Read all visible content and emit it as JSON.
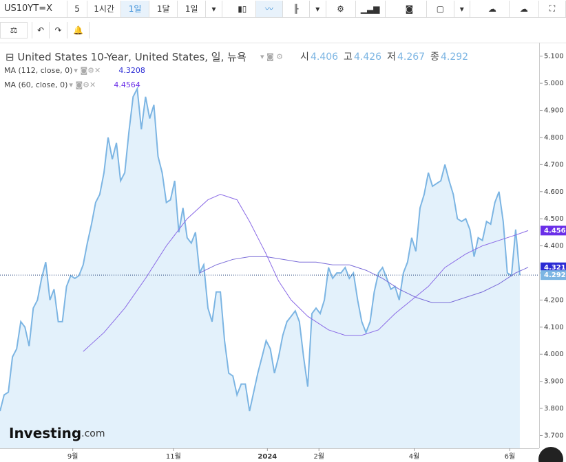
{
  "toolbar": {
    "symbol": "US10YT=X",
    "intervals": [
      "5",
      "1시간",
      "1일",
      "1달",
      "1일"
    ]
  },
  "chart_data": {
    "type": "line",
    "title": "United States 10-Year, United States, 일, 뉴욕",
    "ohlc": [
      {
        "label": "시",
        "value": "4.406"
      },
      {
        "label": "고",
        "value": "4.426"
      },
      {
        "label": "저",
        "value": "4.267"
      },
      {
        "label": "종",
        "value": "4.292"
      }
    ],
    "watermark": [
      "Investing",
      ".com"
    ],
    "xlim": [
      0,
      127
    ],
    "xticks": [
      {
        "value": 17.5,
        "label": "9월"
      },
      {
        "value": 41.7,
        "label": "11월"
      },
      {
        "value": 64.3,
        "label": "2024"
      },
      {
        "value": 76.7,
        "label": "2월"
      },
      {
        "value": 99.6,
        "label": "4월"
      },
      {
        "value": 122.6,
        "label": "6월"
      }
    ],
    "ylim": [
      3.653,
      5.15
    ],
    "yticks": [
      {
        "value": 3.7,
        "label": "3.700"
      },
      {
        "value": 3.8,
        "label": "3.800"
      },
      {
        "value": 3.9,
        "label": "3.900"
      },
      {
        "value": 4.0,
        "label": "4.000"
      },
      {
        "value": 4.1,
        "label": "4.100"
      },
      {
        "value": 4.2,
        "label": "4.200"
      },
      {
        "value": 4.3,
        "label": "4.300"
      },
      {
        "value": 4.4,
        "label": "4.400"
      },
      {
        "value": 4.5,
        "label": "4.500"
      },
      {
        "value": 4.6,
        "label": "4.600"
      },
      {
        "value": 4.7,
        "label": "4.700"
      },
      {
        "value": 4.8,
        "label": "4.800"
      },
      {
        "value": 4.9,
        "label": "4.900"
      },
      {
        "value": 5.0,
        "label": "5.000"
      },
      {
        "value": 5.1,
        "label": "5.100"
      }
    ],
    "series": [
      {
        "name": "US10YT=X",
        "color": "#7cb5e3",
        "fill": "#e3f1fb",
        "values": [
          3.79,
          3.85,
          3.86,
          3.99,
          4.02,
          4.12,
          4.1,
          4.03,
          4.17,
          4.2,
          4.28,
          4.34,
          4.2,
          4.24,
          4.12,
          4.12,
          4.25,
          4.29,
          4.28,
          4.29,
          4.33,
          4.41,
          4.48,
          4.56,
          4.59,
          4.67,
          4.8,
          4.72,
          4.78,
          4.64,
          4.67,
          4.82,
          4.95,
          4.98,
          4.83,
          4.95,
          4.87,
          4.92,
          4.73,
          4.67,
          4.56,
          4.57,
          4.64,
          4.45,
          4.54,
          4.43,
          4.41,
          4.45,
          4.3,
          4.33,
          4.17,
          4.12,
          4.23,
          4.23,
          4.05,
          3.93,
          3.92,
          3.85,
          3.89,
          3.89,
          3.79,
          3.86,
          3.93,
          3.99,
          4.05,
          4.02,
          3.93,
          3.99,
          4.07,
          4.12,
          4.14,
          4.16,
          4.12,
          3.99,
          3.88,
          4.15,
          4.17,
          4.15,
          4.2,
          4.32,
          4.28,
          4.3,
          4.3,
          4.32,
          4.28,
          4.3,
          4.2,
          4.12,
          4.08,
          4.12,
          4.23,
          4.3,
          4.32,
          4.28,
          4.24,
          4.25,
          4.2,
          4.3,
          4.34,
          4.43,
          4.38,
          4.54,
          4.59,
          4.67,
          4.62,
          4.63,
          4.64,
          4.7,
          4.64,
          4.59,
          4.5,
          4.49,
          4.5,
          4.46,
          4.36,
          4.43,
          4.42,
          4.49,
          4.48,
          4.56,
          4.6,
          4.49,
          4.3,
          4.29,
          4.46,
          4.292
        ]
      },
      {
        "name": "MA (112, close, 0)",
        "last_label": "4.3208",
        "color": "#7a6cd8",
        "label_color": "#2b2bd4",
        "x": [
          48,
          52,
          56,
          60,
          64,
          68,
          72,
          76,
          80,
          84,
          88,
          92,
          96,
          100,
          104,
          108,
          112,
          116,
          120,
          124,
          127
        ],
        "values": [
          4.3,
          4.33,
          4.35,
          4.36,
          4.36,
          4.35,
          4.34,
          4.34,
          4.33,
          4.33,
          4.31,
          4.28,
          4.24,
          4.21,
          4.19,
          4.19,
          4.21,
          4.23,
          4.26,
          4.3,
          4.3208
        ]
      },
      {
        "name": "MA (60, close, 0)",
        "last_label": "4.4564",
        "color": "#8a6ae6",
        "label_color": "#6a2ee8",
        "x": [
          20,
          25,
          30,
          35,
          40,
          45,
          50,
          53,
          57,
          60,
          64,
          67,
          70,
          74,
          79,
          83,
          87,
          91,
          95,
          99,
          103,
          107,
          112,
          116,
          120,
          124,
          127
        ],
        "values": [
          4.01,
          4.08,
          4.17,
          4.28,
          4.4,
          4.5,
          4.57,
          4.59,
          4.57,
          4.49,
          4.37,
          4.27,
          4.2,
          4.14,
          4.09,
          4.07,
          4.07,
          4.09,
          4.15,
          4.2,
          4.25,
          4.32,
          4.37,
          4.4,
          4.42,
          4.44,
          4.4564
        ]
      }
    ],
    "price_scale_labels": [
      {
        "value": 4.4564,
        "label": "4.456",
        "color": "#6a2ee8"
      },
      {
        "value": 4.3208,
        "label": "4.321",
        "color": "#2b2bd4"
      },
      {
        "value": 4.292,
        "label": "4.292",
        "color": "#7cb5e3"
      }
    ]
  }
}
